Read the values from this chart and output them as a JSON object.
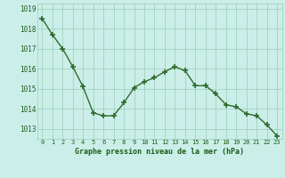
{
  "x": [
    0,
    1,
    2,
    3,
    4,
    5,
    6,
    7,
    8,
    9,
    10,
    11,
    12,
    13,
    14,
    15,
    16,
    17,
    18,
    19,
    20,
    21,
    22,
    23
  ],
  "y": [
    1018.5,
    1017.7,
    1017.0,
    1016.1,
    1015.1,
    1013.8,
    1013.65,
    1013.65,
    1014.3,
    1015.05,
    1015.35,
    1015.55,
    1015.85,
    1016.1,
    1015.9,
    1015.15,
    1015.15,
    1014.75,
    1014.2,
    1014.1,
    1013.75,
    1013.65,
    1013.2,
    1012.65
  ],
  "line_color": "#2d6b2d",
  "marker_color": "#2d6b2d",
  "bg_color": "#cceee8",
  "grid_color": "#99ccbb",
  "xlabel": "Graphe pression niveau de la mer (hPa)",
  "xlabel_color": "#1a5c1a",
  "tick_label_color": "#1a5c1a",
  "ylim_min": 1012.5,
  "ylim_max": 1019.25,
  "yticks": [
    1013,
    1014,
    1015,
    1016,
    1017,
    1018,
    1019
  ],
  "xticks": [
    0,
    1,
    2,
    3,
    4,
    5,
    6,
    7,
    8,
    9,
    10,
    11,
    12,
    13,
    14,
    15,
    16,
    17,
    18,
    19,
    20,
    21,
    22,
    23
  ],
  "xtick_labels": [
    "0",
    "1",
    "2",
    "3",
    "4",
    "5",
    "6",
    "7",
    "8",
    "9",
    "10",
    "11",
    "12",
    "13",
    "14",
    "15",
    "16",
    "17",
    "18",
    "19",
    "20",
    "21",
    "22",
    "23"
  ],
  "fig_width": 3.2,
  "fig_height": 2.0,
  "dpi": 100
}
